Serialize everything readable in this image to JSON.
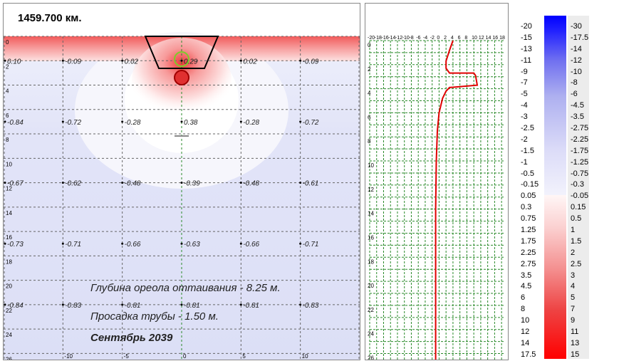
{
  "title": "1459.700 км.",
  "notes": {
    "depth": "Глубина ореола оттаивания - 8.25 м.",
    "sag": "Просадка трубы - 1.50 м.",
    "date": "Сентябрь 2039"
  },
  "chart_data": [
    {
      "type": "heatmap",
      "x_ticks": [
        -10,
        -5,
        0,
        5,
        10
      ],
      "y_ticks": [
        0,
        2,
        4,
        6,
        8,
        10,
        12,
        14,
        16,
        18,
        20,
        22,
        24,
        26
      ],
      "xlim": [
        -15,
        15
      ],
      "ylim": [
        0,
        26.5
      ],
      "grid": true,
      "value_rows": [
        {
          "depth": 2,
          "values": [
            "0.10",
            "-0.09",
            "0.02",
            "0.29",
            "0.02",
            "-0.09"
          ]
        },
        {
          "depth": 7,
          "values": [
            "-0.84",
            "-0.72",
            "-0.28",
            "0.38",
            "-0.28",
            "-0.72"
          ]
        },
        {
          "depth": 12,
          "values": [
            "-0.67",
            "-0.62",
            "-0.48",
            "-0.39",
            "-0.48",
            "-0.61"
          ]
        },
        {
          "depth": 17,
          "values": [
            "-0.73",
            "-0.71",
            "-0.66",
            "-0.63",
            "-0.66",
            "-0.71"
          ]
        },
        {
          "depth": 22,
          "values": [
            "-0.84",
            "-0.83",
            "-0.81",
            "-0.81",
            "-0.81",
            "-0.83"
          ]
        }
      ],
      "value_x": [
        -15,
        -10,
        -5,
        0,
        5,
        10
      ]
    },
    {
      "type": "line",
      "x_ticks": [
        -20,
        -18,
        -16,
        -14,
        -12,
        -10,
        -8,
        -6,
        -4,
        -2,
        0,
        2,
        4,
        6,
        8,
        10,
        12,
        14,
        16,
        18
      ],
      "y_ticks": [
        0,
        2,
        4,
        6,
        8,
        10,
        12,
        14,
        16,
        18,
        20,
        22,
        24,
        26
      ],
      "xlim": [
        -20,
        19
      ],
      "ylim": [
        0,
        26.5
      ],
      "series": [
        {
          "color": "#e00000",
          "points": [
            [
              4,
              0
            ],
            [
              3,
              0.8
            ],
            [
              2,
              1.7
            ],
            [
              2,
              2.3
            ],
            [
              3,
              2.7
            ],
            [
              10,
              2.7
            ],
            [
              10.5,
              2.9
            ],
            [
              11,
              3.7
            ],
            [
              3,
              3.9
            ],
            [
              2,
              4.2
            ],
            [
              1,
              4.8
            ],
            [
              0,
              6
            ],
            [
              -0.5,
              7.5
            ],
            [
              -0.8,
              10
            ],
            [
              -1,
              14
            ],
            [
              -1,
              20
            ],
            [
              -1,
              26.5
            ]
          ]
        }
      ]
    }
  ],
  "scale_labels_left": [
    "-20",
    "-15",
    "-13",
    "-11",
    "-9",
    "-7",
    "-5",
    "-4",
    "-3",
    "-2.5",
    "-2",
    "-1.5",
    "-1",
    "-0.5",
    "-0.15",
    "0.05",
    "0.3",
    "0.75",
    "1.25",
    "1.75",
    "2.25",
    "2.75",
    "3.5",
    "4.5",
    "6",
    "8",
    "10",
    "12",
    "14",
    "17.5"
  ],
  "scale_labels_right": [
    "-30",
    "-17.5",
    "-14",
    "-12",
    "-10",
    "-8",
    "-6",
    "-4.5",
    "-3.5",
    "-2.75",
    "-2.25",
    "-1.75",
    "-1.25",
    "-0.75",
    "-0.3",
    "-0.05",
    "0.15",
    "0.5",
    "1",
    "1.5",
    "2",
    "2.5",
    "3",
    "4",
    "5",
    "7",
    "9",
    "11",
    "13",
    "15"
  ]
}
